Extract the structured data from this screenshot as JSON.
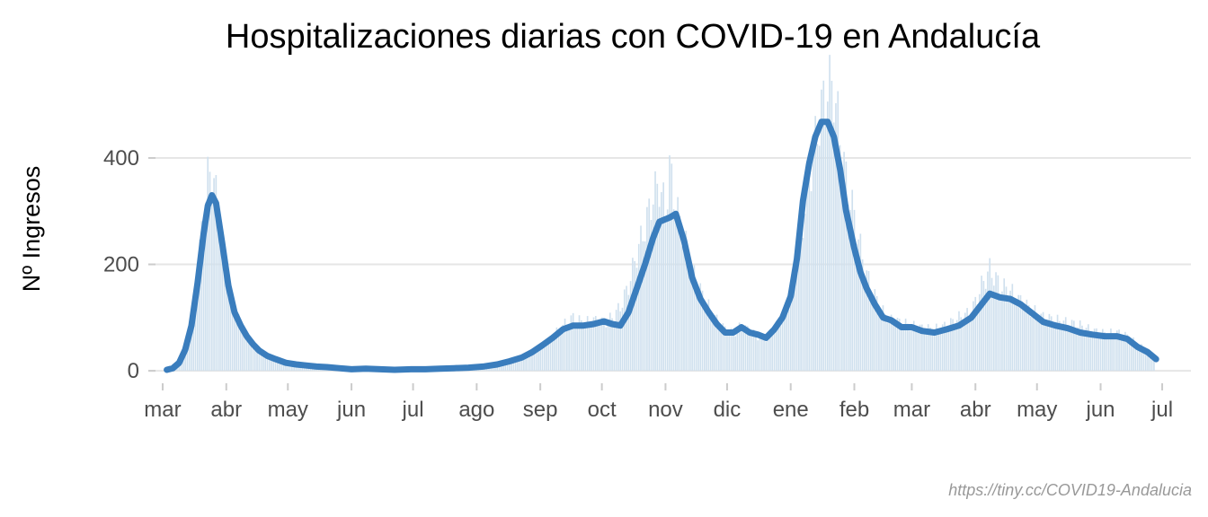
{
  "chart_data": {
    "type": "bar",
    "title": "Hospitalizaciones diarias con COVID-19 en Andalucía",
    "xlabel": "",
    "ylabel": "Nº Ingresos",
    "caption": "https://tiny.cc/COVID19-Andalucia",
    "x_ticks": [
      "mar",
      "abr",
      "may",
      "jun",
      "jul",
      "ago",
      "sep",
      "oct",
      "nov",
      "dic",
      "ene",
      "feb",
      "mar",
      "abr",
      "may",
      "jun",
      "jul"
    ],
    "x_tick_dates": [
      "2020-03-01",
      "2020-04-01",
      "2020-05-01",
      "2020-06-01",
      "2020-07-01",
      "2020-08-01",
      "2020-09-01",
      "2020-10-01",
      "2020-11-01",
      "2020-12-01",
      "2021-01-01",
      "2021-02-01",
      "2021-03-01",
      "2021-04-01",
      "2021-05-01",
      "2021-06-01",
      "2021-07-01"
    ],
    "xlim": [
      "2020-02-23",
      "2021-07-15"
    ],
    "y_ticks": [
      0,
      200,
      400
    ],
    "ylim": [
      -20,
      545
    ],
    "grid": true,
    "colors": {
      "bars": "#cfe0ee",
      "trend": "#3a7dbd",
      "grid": "#e6e6e6",
      "ticks": "#cccccc"
    },
    "series": [
      {
        "name": "",
        "kind": "bars",
        "points": [
          [
            "2020-03-03",
            2
          ],
          [
            "2020-03-06",
            6
          ],
          [
            "2020-03-09",
            18
          ],
          [
            "2020-03-12",
            45
          ],
          [
            "2020-03-15",
            100
          ],
          [
            "2020-03-18",
            190
          ],
          [
            "2020-03-21",
            300
          ],
          [
            "2020-03-23",
            360
          ],
          [
            "2020-03-25",
            380
          ],
          [
            "2020-03-27",
            330
          ],
          [
            "2020-03-30",
            240
          ],
          [
            "2020-04-02",
            160
          ],
          [
            "2020-04-05",
            115
          ],
          [
            "2020-04-08",
            85
          ],
          [
            "2020-04-11",
            65
          ],
          [
            "2020-04-14",
            50
          ],
          [
            "2020-04-17",
            38
          ],
          [
            "2020-04-21",
            28
          ],
          [
            "2020-04-25",
            22
          ],
          [
            "2020-04-30",
            15
          ],
          [
            "2020-05-05",
            12
          ],
          [
            "2020-05-10",
            10
          ],
          [
            "2020-05-15",
            8
          ],
          [
            "2020-05-20",
            7
          ],
          [
            "2020-05-26",
            5
          ],
          [
            "2020-06-01",
            3
          ],
          [
            "2020-06-08",
            4
          ],
          [
            "2020-06-15",
            3
          ],
          [
            "2020-06-22",
            2
          ],
          [
            "2020-06-30",
            3
          ],
          [
            "2020-07-07",
            3
          ],
          [
            "2020-07-14",
            4
          ],
          [
            "2020-07-21",
            5
          ],
          [
            "2020-07-28",
            6
          ],
          [
            "2020-08-04",
            8
          ],
          [
            "2020-08-11",
            12
          ],
          [
            "2020-08-17",
            18
          ],
          [
            "2020-08-23",
            25
          ],
          [
            "2020-08-28",
            35
          ],
          [
            "2020-09-02",
            48
          ],
          [
            "2020-09-07",
            65
          ],
          [
            "2020-09-12",
            85
          ],
          [
            "2020-09-17",
            100
          ],
          [
            "2020-09-22",
            90
          ],
          [
            "2020-09-27",
            95
          ],
          [
            "2020-10-02",
            90
          ],
          [
            "2020-10-06",
            100
          ],
          [
            "2020-10-10",
            120
          ],
          [
            "2020-10-14",
            160
          ],
          [
            "2020-10-18",
            220
          ],
          [
            "2020-10-22",
            270
          ],
          [
            "2020-10-26",
            330
          ],
          [
            "2020-10-29",
            350
          ],
          [
            "2020-11-01",
            300
          ],
          [
            "2020-11-03",
            380
          ],
          [
            "2020-11-06",
            310
          ],
          [
            "2020-11-10",
            250
          ],
          [
            "2020-11-14",
            190
          ],
          [
            "2020-11-18",
            150
          ],
          [
            "2020-11-22",
            120
          ],
          [
            "2020-11-26",
            95
          ],
          [
            "2020-11-30",
            78
          ],
          [
            "2020-12-04",
            70
          ],
          [
            "2020-12-08",
            85
          ],
          [
            "2020-12-12",
            75
          ],
          [
            "2020-12-16",
            65
          ],
          [
            "2020-12-20",
            62
          ],
          [
            "2020-12-24",
            80
          ],
          [
            "2020-12-28",
            100
          ],
          [
            "2021-01-01",
            140
          ],
          [
            "2021-01-04",
            200
          ],
          [
            "2021-01-07",
            280
          ],
          [
            "2021-01-10",
            360
          ],
          [
            "2021-01-13",
            430
          ],
          [
            "2021-01-16",
            490
          ],
          [
            "2021-01-19",
            535
          ],
          [
            "2021-01-22",
            530
          ],
          [
            "2021-01-25",
            440
          ],
          [
            "2021-01-28",
            360
          ],
          [
            "2021-02-01",
            290
          ],
          [
            "2021-02-04",
            230
          ],
          [
            "2021-02-07",
            180
          ],
          [
            "2021-02-11",
            140
          ],
          [
            "2021-02-15",
            110
          ],
          [
            "2021-02-19",
            95
          ],
          [
            "2021-02-24",
            90
          ],
          [
            "2021-03-01",
            85
          ],
          [
            "2021-03-06",
            80
          ],
          [
            "2021-03-12",
            78
          ],
          [
            "2021-03-18",
            85
          ],
          [
            "2021-03-24",
            100
          ],
          [
            "2021-03-30",
            110
          ],
          [
            "2021-04-04",
            160
          ],
          [
            "2021-04-08",
            190
          ],
          [
            "2021-04-13",
            160
          ],
          [
            "2021-04-18",
            150
          ],
          [
            "2021-04-23",
            130
          ],
          [
            "2021-04-28",
            115
          ],
          [
            "2021-05-04",
            100
          ],
          [
            "2021-05-10",
            95
          ],
          [
            "2021-05-16",
            90
          ],
          [
            "2021-05-22",
            85
          ],
          [
            "2021-05-28",
            75
          ],
          [
            "2021-06-03",
            70
          ],
          [
            "2021-06-09",
            72
          ],
          [
            "2021-06-14",
            65
          ],
          [
            "2021-06-19",
            50
          ],
          [
            "2021-06-24",
            38
          ],
          [
            "2021-06-28",
            20
          ]
        ]
      },
      {
        "name": "",
        "kind": "line",
        "points": [
          [
            "2020-03-03",
            2
          ],
          [
            "2020-03-06",
            5
          ],
          [
            "2020-03-09",
            15
          ],
          [
            "2020-03-12",
            40
          ],
          [
            "2020-03-15",
            85
          ],
          [
            "2020-03-18",
            165
          ],
          [
            "2020-03-21",
            260
          ],
          [
            "2020-03-23",
            310
          ],
          [
            "2020-03-25",
            330
          ],
          [
            "2020-03-27",
            315
          ],
          [
            "2020-03-30",
            240
          ],
          [
            "2020-04-02",
            160
          ],
          [
            "2020-04-05",
            110
          ],
          [
            "2020-04-08",
            85
          ],
          [
            "2020-04-11",
            65
          ],
          [
            "2020-04-14",
            50
          ],
          [
            "2020-04-17",
            38
          ],
          [
            "2020-04-21",
            28
          ],
          [
            "2020-04-25",
            22
          ],
          [
            "2020-04-30",
            15
          ],
          [
            "2020-05-05",
            12
          ],
          [
            "2020-05-10",
            10
          ],
          [
            "2020-05-15",
            8
          ],
          [
            "2020-05-20",
            7
          ],
          [
            "2020-05-26",
            5
          ],
          [
            "2020-06-01",
            3
          ],
          [
            "2020-06-08",
            4
          ],
          [
            "2020-06-15",
            3
          ],
          [
            "2020-06-22",
            2
          ],
          [
            "2020-06-30",
            3
          ],
          [
            "2020-07-07",
            3
          ],
          [
            "2020-07-14",
            4
          ],
          [
            "2020-07-21",
            5
          ],
          [
            "2020-07-28",
            6
          ],
          [
            "2020-08-04",
            8
          ],
          [
            "2020-08-11",
            12
          ],
          [
            "2020-08-17",
            18
          ],
          [
            "2020-08-23",
            25
          ],
          [
            "2020-08-28",
            35
          ],
          [
            "2020-09-02",
            48
          ],
          [
            "2020-09-07",
            62
          ],
          [
            "2020-09-12",
            78
          ],
          [
            "2020-09-17",
            85
          ],
          [
            "2020-09-22",
            85
          ],
          [
            "2020-09-27",
            88
          ],
          [
            "2020-10-02",
            93
          ],
          [
            "2020-10-06",
            88
          ],
          [
            "2020-10-10",
            85
          ],
          [
            "2020-10-14",
            110
          ],
          [
            "2020-10-18",
            155
          ],
          [
            "2020-10-22",
            200
          ],
          [
            "2020-10-26",
            250
          ],
          [
            "2020-10-29",
            280
          ],
          [
            "2020-11-01",
            285
          ],
          [
            "2020-11-03",
            288
          ],
          [
            "2020-11-06",
            295
          ],
          [
            "2020-11-10",
            245
          ],
          [
            "2020-11-14",
            175
          ],
          [
            "2020-11-18",
            135
          ],
          [
            "2020-11-22",
            110
          ],
          [
            "2020-11-26",
            88
          ],
          [
            "2020-11-30",
            72
          ],
          [
            "2020-12-04",
            72
          ],
          [
            "2020-12-08",
            82
          ],
          [
            "2020-12-12",
            72
          ],
          [
            "2020-12-16",
            68
          ],
          [
            "2020-12-20",
            62
          ],
          [
            "2020-12-24",
            78
          ],
          [
            "2020-12-28",
            100
          ],
          [
            "2021-01-01",
            140
          ],
          [
            "2021-01-04",
            210
          ],
          [
            "2021-01-07",
            320
          ],
          [
            "2021-01-10",
            390
          ],
          [
            "2021-01-13",
            440
          ],
          [
            "2021-01-16",
            468
          ],
          [
            "2021-01-19",
            468
          ],
          [
            "2021-01-22",
            440
          ],
          [
            "2021-01-25",
            380
          ],
          [
            "2021-01-28",
            300
          ],
          [
            "2021-02-01",
            230
          ],
          [
            "2021-02-04",
            185
          ],
          [
            "2021-02-07",
            155
          ],
          [
            "2021-02-11",
            125
          ],
          [
            "2021-02-15",
            100
          ],
          [
            "2021-02-19",
            95
          ],
          [
            "2021-02-24",
            82
          ],
          [
            "2021-03-01",
            82
          ],
          [
            "2021-03-06",
            75
          ],
          [
            "2021-03-12",
            72
          ],
          [
            "2021-03-18",
            78
          ],
          [
            "2021-03-24",
            85
          ],
          [
            "2021-03-30",
            100
          ],
          [
            "2021-04-04",
            125
          ],
          [
            "2021-04-08",
            145
          ],
          [
            "2021-04-13",
            138
          ],
          [
            "2021-04-18",
            135
          ],
          [
            "2021-04-23",
            125
          ],
          [
            "2021-04-28",
            110
          ],
          [
            "2021-05-04",
            92
          ],
          [
            "2021-05-10",
            85
          ],
          [
            "2021-05-16",
            80
          ],
          [
            "2021-05-22",
            72
          ],
          [
            "2021-05-28",
            68
          ],
          [
            "2021-06-03",
            65
          ],
          [
            "2021-06-09",
            65
          ],
          [
            "2021-06-14",
            60
          ],
          [
            "2021-06-19",
            45
          ],
          [
            "2021-06-24",
            35
          ],
          [
            "2021-06-28",
            22
          ]
        ]
      }
    ]
  }
}
